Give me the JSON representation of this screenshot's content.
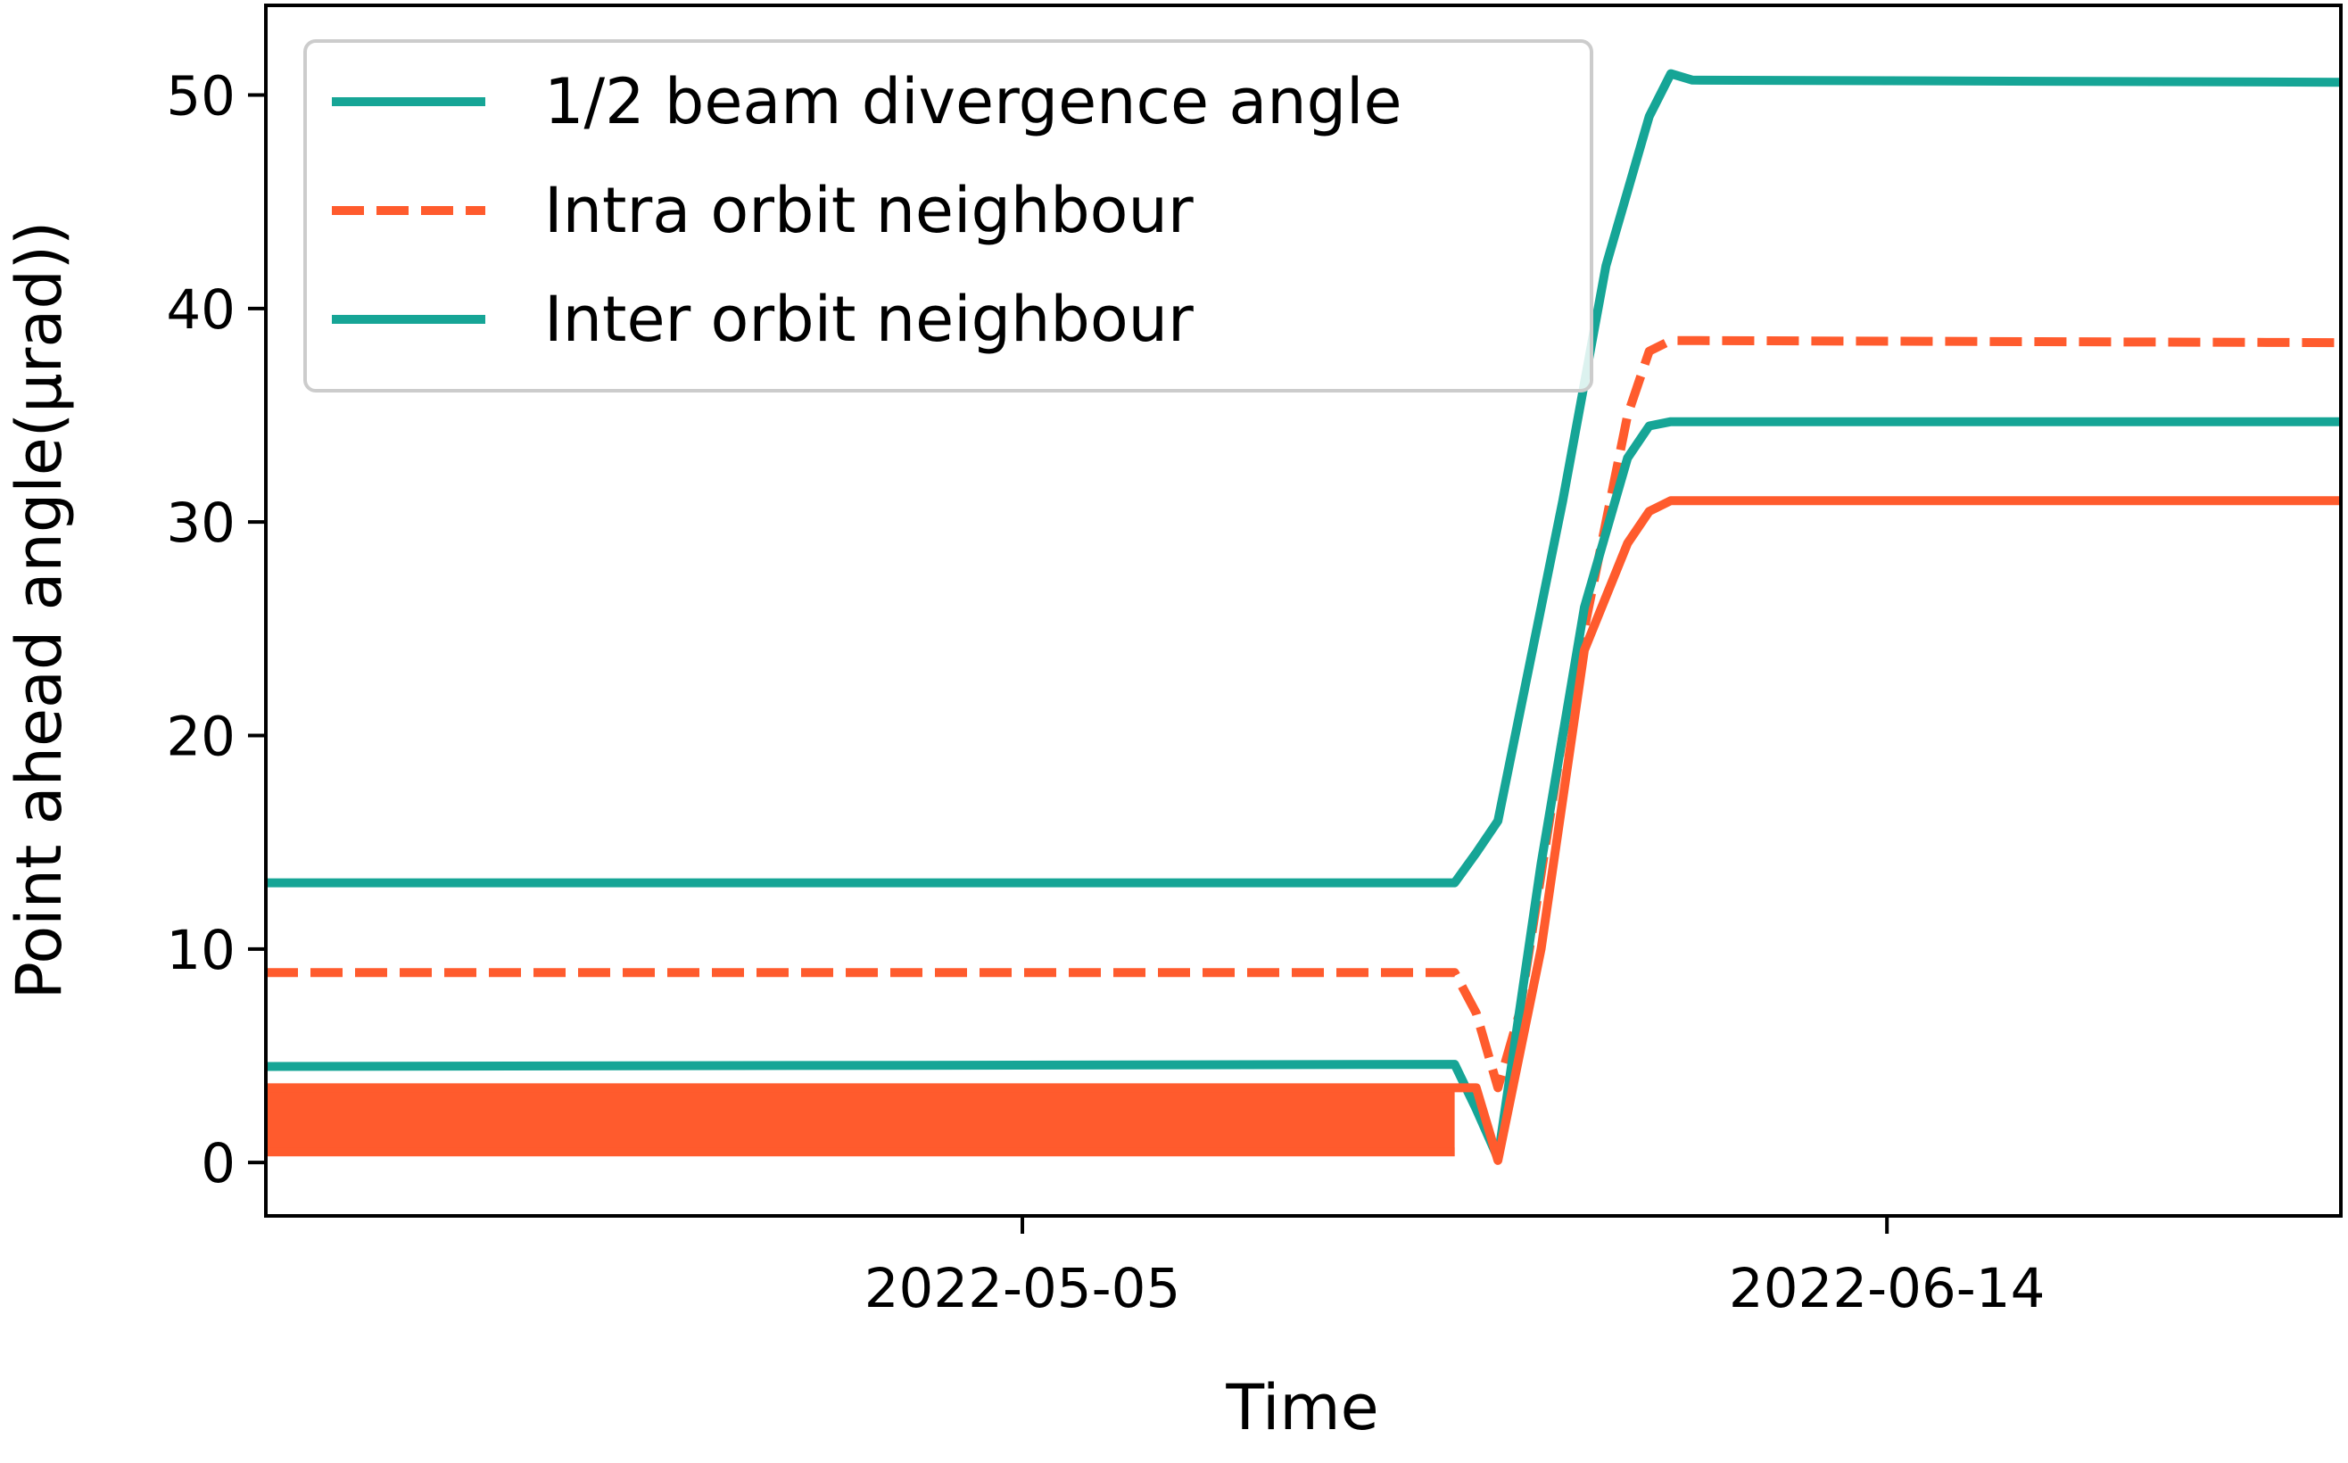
{
  "chart_data": {
    "type": "line",
    "title": "",
    "xlabel": "Time",
    "ylabel": "Point ahead angle(μrad))",
    "xlim": [
      "2022-03-31",
      "2022-07-05"
    ],
    "ylim": [
      -2.5,
      54.2
    ],
    "x_ticks": [
      "2022-05-05",
      "2022-06-14"
    ],
    "y_ticks": [
      0,
      10,
      20,
      30,
      40,
      50
    ],
    "grid": false,
    "legend": {
      "placement": "upper-left",
      "entries": [
        {
          "label": "1/2 beam divergence angle",
          "color": "#16a596",
          "style": "solid"
        },
        {
          "label": "Intra orbit neighbour",
          "color": "#ff5b2d",
          "style": "dashed"
        },
        {
          "label": "Inter orbit neighbour",
          "color": "#16a596",
          "style": "solid"
        }
      ]
    },
    "series": [
      {
        "color": "#16a596",
        "style": "solid",
        "x": [
          "2022-03-31",
          "2022-05-25",
          "2022-05-26",
          "2022-05-27",
          "2022-05-28",
          "2022-05-30",
          "2022-06-01",
          "2022-06-03",
          "2022-06-04",
          "2022-06-05",
          "2022-07-05"
        ],
        "y": [
          13.1,
          13.1,
          14.5,
          16,
          21,
          31,
          42,
          49,
          51,
          50.7,
          50.6
        ]
      },
      {
        "color": "#ff5b2d",
        "style": "dashed",
        "x": [
          "2022-03-31",
          "2022-05-25",
          "2022-05-26",
          "2022-05-27",
          "2022-05-28",
          "2022-05-30",
          "2022-06-01",
          "2022-06-02",
          "2022-06-03",
          "2022-06-04",
          "2022-07-05"
        ],
        "y": [
          8.9,
          8.9,
          7.0,
          3.5,
          7.0,
          20,
          30,
          35,
          38,
          38.5,
          38.4
        ]
      },
      {
        "color": "#16a596",
        "style": "solid",
        "x": [
          "2022-03-31",
          "2022-05-25",
          "2022-05-26",
          "2022-05-27",
          "2022-05-29",
          "2022-05-31",
          "2022-06-02",
          "2022-06-03",
          "2022-06-04",
          "2022-07-05"
        ],
        "y": [
          4.5,
          4.6,
          2.5,
          0.2,
          14,
          26,
          33,
          34.5,
          34.7,
          34.7
        ]
      },
      {
        "color": "#ff5b2d",
        "style": "solid",
        "x": [
          "2022-03-31",
          "2022-05-25",
          "2022-05-26",
          "2022-05-27",
          "2022-05-29",
          "2022-05-31",
          "2022-06-02",
          "2022-06-03",
          "2022-06-04",
          "2022-07-05"
        ],
        "y": [
          3.5,
          3.5,
          3.5,
          0.1,
          10,
          24,
          29,
          30.5,
          31,
          31
        ]
      },
      {
        "color": "#ff5b2d",
        "style": "solid",
        "x": [
          "2022-03-31",
          "2022-05-25"
        ],
        "y": [
          0.5,
          0.5
        ]
      }
    ],
    "bands": [
      {
        "color": "#ff5b2d",
        "x": [
          "2022-03-31",
          "2022-05-25"
        ],
        "y_low": 0.3,
        "y_high": 3.7
      }
    ]
  }
}
